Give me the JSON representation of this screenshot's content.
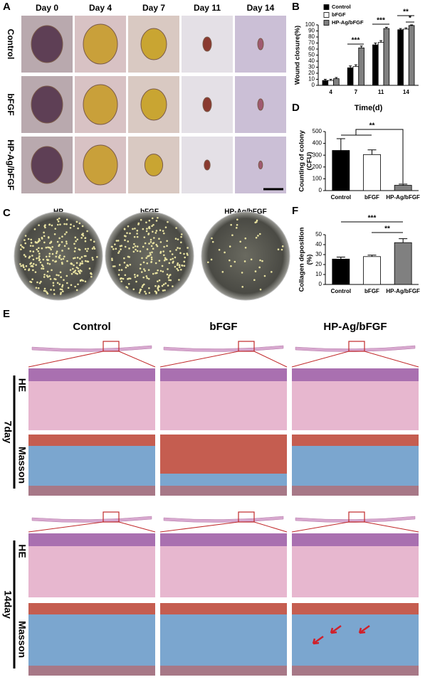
{
  "figure": {
    "panel_labels": [
      "A",
      "B",
      "C",
      "D",
      "E",
      "F"
    ],
    "A": {
      "columns": [
        "Day 0",
        "Day 4",
        "Day 7",
        "Day 11",
        "Day 14"
      ],
      "rows": [
        "Control",
        "bFGF",
        "HP-Ag/bFGF"
      ]
    },
    "C": {
      "columns": [
        "HP",
        "bFGF",
        "HP-Ag/bFGF"
      ]
    },
    "E": {
      "columns": [
        "Control",
        "bFGF",
        "HP-Ag/bFGF"
      ],
      "stains": [
        "HE",
        "Masson"
      ],
      "times": [
        "7day",
        "14day"
      ]
    }
  },
  "chart_data": [
    {
      "type": "bar",
      "ylabel": "Wound closure(%)",
      "xlabel": "Time(d)",
      "categories": [
        "4",
        "7",
        "11",
        "14"
      ],
      "series": [
        {
          "name": "Control",
          "color": "#000000",
          "values": [
            8,
            29,
            67,
            92
          ],
          "errors": [
            2,
            3,
            3,
            2
          ]
        },
        {
          "name": "bFGF",
          "color": "#ffffff",
          "values": [
            8,
            31,
            71,
            93
          ],
          "errors": [
            2,
            3,
            3,
            2
          ]
        },
        {
          "name": "HP-Ag/bFGF",
          "color": "#808080",
          "values": [
            11,
            62,
            94,
            99
          ],
          "errors": [
            2,
            3,
            2,
            1
          ]
        }
      ],
      "ylim": [
        0,
        100
      ],
      "yticks": [
        0,
        10,
        20,
        30,
        40,
        50,
        60,
        70,
        80,
        90,
        100
      ],
      "legend": "upper left",
      "annotations": [
        "***",
        "***",
        "**",
        "*"
      ]
    },
    {
      "type": "bar",
      "ylabel": [
        "Counting of colony",
        "(CFU)"
      ],
      "categories": [
        "Control",
        "bFGF",
        "HP-Ag/bFGF"
      ],
      "values": [
        340,
        305,
        45
      ],
      "errors": [
        100,
        40,
        10
      ],
      "colors": [
        "#000000",
        "#ffffff",
        "#808080"
      ],
      "ylim": [
        0,
        500
      ],
      "yticks": [
        0,
        100,
        200,
        300,
        400,
        500
      ],
      "annotations": [
        "**"
      ]
    },
    {
      "type": "bar",
      "ylabel": [
        "Collagen deposition",
        "(%)"
      ],
      "categories": [
        "Control",
        "bFGF",
        "HP-Ag/bFGF"
      ],
      "values": [
        25.5,
        28,
        42
      ],
      "errors": [
        2,
        1.5,
        4
      ],
      "colors": [
        "#000000",
        "#ffffff",
        "#808080"
      ],
      "ylim": [
        0,
        50
      ],
      "yticks": [
        0,
        10,
        20,
        30,
        40,
        50
      ],
      "annotations": [
        "***",
        "**"
      ]
    }
  ]
}
